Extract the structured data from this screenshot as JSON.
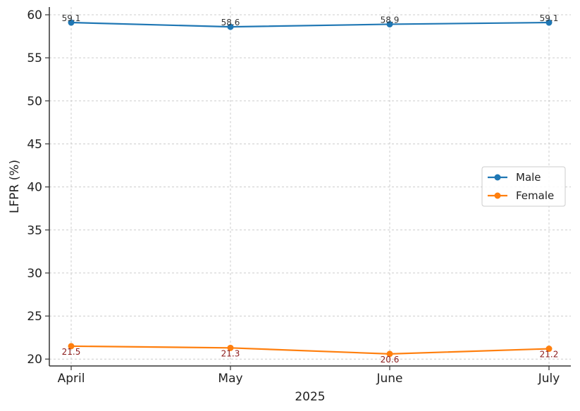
{
  "chart_data": {
    "type": "line",
    "title": "",
    "xlabel": "2025",
    "ylabel": "LFPR (%)",
    "categories": [
      "April",
      "May",
      "June",
      "July"
    ],
    "ylim": [
      19.2,
      60.9
    ],
    "yticks": [
      20,
      25,
      30,
      35,
      40,
      45,
      50,
      55,
      60
    ],
    "grid": true,
    "legend_position": "center-right",
    "series": [
      {
        "name": "Male",
        "values": [
          59.1,
          58.6,
          58.9,
          59.1
        ],
        "labels": [
          "59.1",
          "58.6",
          "58.9",
          "59.1"
        ],
        "color": "#1f77b4",
        "label_color": "#333333"
      },
      {
        "name": "Female",
        "values": [
          21.5,
          21.3,
          20.6,
          21.2
        ],
        "labels": [
          "21.5",
          "21.3",
          "20.6",
          "21.2"
        ],
        "color": "#ff7f0e",
        "label_color": "#8b1a1a"
      }
    ]
  }
}
